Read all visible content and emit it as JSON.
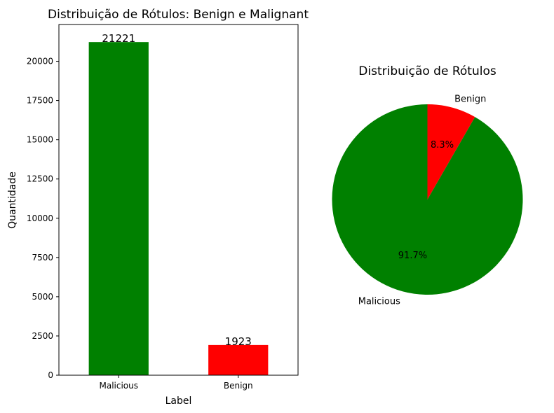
{
  "chart_data": [
    {
      "type": "bar",
      "title": "Distribuição de Rótulos: Benign e Malignant",
      "xlabel": "Label",
      "ylabel": "Quantidade",
      "categories": [
        "Malicious",
        "Benign"
      ],
      "values": [
        21221,
        1923
      ],
      "value_labels": [
        "21221",
        "1923"
      ],
      "colors": [
        "#008000",
        "#ff0000"
      ],
      "ylim": [
        0,
        22343
      ],
      "yticks": [
        0,
        2500,
        5000,
        7500,
        10000,
        12500,
        15000,
        17500,
        20000
      ],
      "ytick_labels": [
        "0",
        "2500",
        "5000",
        "7500",
        "10000",
        "12500",
        "15000",
        "17500",
        "20000"
      ],
      "grid": false
    },
    {
      "type": "pie",
      "title": "Distribuição de Rótulos",
      "labels": [
        "Benign",
        "Malicious"
      ],
      "values": [
        1923,
        21221
      ],
      "percent_labels": [
        "8.3%",
        "91.7%"
      ],
      "colors": [
        "#ff0000",
        "#008000"
      ],
      "start_angle": 90,
      "direction": "clockwise"
    }
  ]
}
